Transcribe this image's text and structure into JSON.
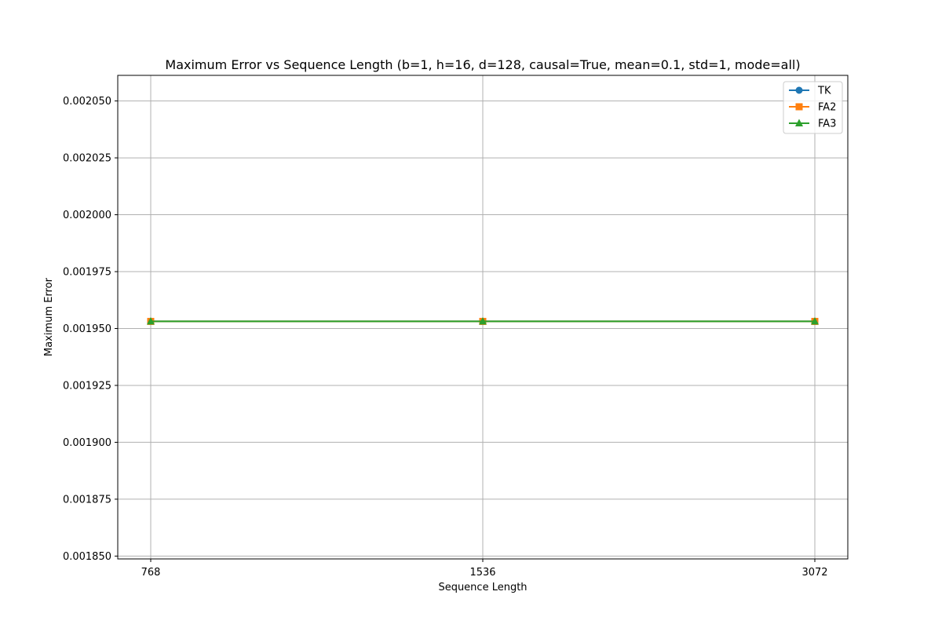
{
  "chart_data": {
    "type": "line",
    "title": "Maximum Error vs Sequence Length (b=1, h=16, d=128, causal=True, mean=0.1, std=1, mode=all)",
    "xlabel": "Sequence Length",
    "ylabel": "Maximum Error",
    "categories": [
      "768",
      "1536",
      "3072"
    ],
    "x": [
      768,
      1536,
      3072
    ],
    "x_scale": "categorical",
    "ylim": [
      0.00184875,
      0.00206125
    ],
    "yticks": [
      0.00185,
      0.001875,
      0.0019,
      0.001925,
      0.00195,
      0.001975,
      0.002,
      0.002025,
      0.00205
    ],
    "ytick_labels": [
      "0.001850",
      "0.001875",
      "0.001900",
      "0.001925",
      "0.001950",
      "0.001975",
      "0.002000",
      "0.002025",
      "0.002050"
    ],
    "grid": true,
    "legend_position": "top-right",
    "series": [
      {
        "name": "TK",
        "values": [
          0.001953125,
          0.001953125,
          0.001953125
        ],
        "color": "#1f77b4",
        "marker": "circle"
      },
      {
        "name": "FA2",
        "values": [
          0.001953125,
          0.001953125,
          0.001953125
        ],
        "color": "#ff7f0e",
        "marker": "square"
      },
      {
        "name": "FA3",
        "values": [
          0.001953125,
          0.001953125,
          0.001953125
        ],
        "color": "#2ca02c",
        "marker": "triangle"
      }
    ]
  }
}
